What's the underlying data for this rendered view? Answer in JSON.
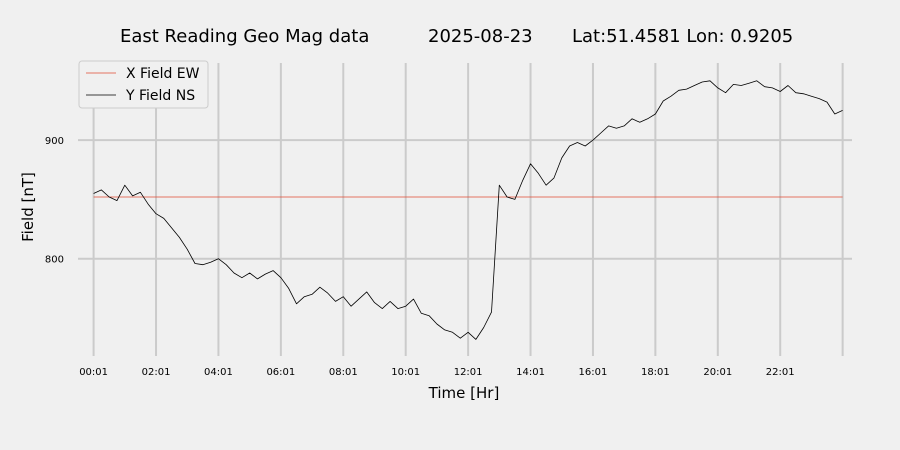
{
  "chart_data": {
    "type": "line",
    "title_parts": {
      "name": "East Reading Geo Mag data",
      "date": "2025-08-23",
      "location": "Lat:51.4581  Lon: 0.9205"
    },
    "xlabel": "Time  [Hr]",
    "ylabel": "Field  [nT]",
    "xlim": [
      -0.5,
      24.3
    ],
    "ylim": [
      718,
      965
    ],
    "x_ticks": [
      0,
      2,
      4,
      6,
      8,
      10,
      12,
      14,
      16,
      18,
      20,
      22,
      24
    ],
    "x_tick_labels": [
      "00:01",
      "02:01",
      "04:01",
      "06:01",
      "08:01",
      "10:01",
      "12:01",
      "14:01",
      "16:01",
      "18:01",
      "20:01",
      "22:01",
      ""
    ],
    "y_ticks": [
      800,
      900
    ],
    "y_tick_labels": [
      "800",
      "900"
    ],
    "grid": true,
    "legend_position": "top-left",
    "series": [
      {
        "name": "X Field EW",
        "color": "#e24a33",
        "x": [
          0,
          24
        ],
        "y": [
          852,
          852
        ]
      },
      {
        "name": "Y Field NS",
        "color": "#000000",
        "x": [
          0,
          0.25,
          0.5,
          0.75,
          1,
          1.25,
          1.5,
          1.75,
          2,
          2.25,
          2.5,
          2.75,
          3,
          3.25,
          3.5,
          3.75,
          4,
          4.25,
          4.5,
          4.75,
          5,
          5.25,
          5.5,
          5.75,
          6,
          6.25,
          6.5,
          6.75,
          7,
          7.25,
          7.5,
          7.75,
          8,
          8.25,
          8.5,
          8.75,
          9,
          9.25,
          9.5,
          9.75,
          10,
          10.25,
          10.5,
          10.75,
          11,
          11.25,
          11.5,
          11.75,
          12,
          12.25,
          12.5,
          12.75,
          13,
          13.25,
          13.5,
          13.75,
          14,
          14.25,
          14.5,
          14.75,
          15,
          15.25,
          15.5,
          15.75,
          16,
          16.25,
          16.5,
          16.75,
          17,
          17.25,
          17.5,
          17.75,
          18,
          18.25,
          18.5,
          18.75,
          19,
          19.25,
          19.5,
          19.75,
          20,
          20.25,
          20.5,
          20.75,
          21,
          21.25,
          21.5,
          21.75,
          22,
          22.25,
          22.5,
          22.75,
          23,
          23.25,
          23.5,
          23.75,
          24
        ],
        "y": [
          855,
          858,
          852,
          849,
          862,
          853,
          856,
          846,
          838,
          834,
          826,
          818,
          808,
          796,
          795,
          797,
          800,
          795,
          788,
          784,
          788,
          783,
          787,
          790,
          784,
          775,
          762,
          768,
          770,
          776,
          771,
          764,
          768,
          760,
          766,
          772,
          763,
          758,
          764,
          758,
          760,
          766,
          754,
          752,
          745,
          740,
          738,
          733,
          738,
          732,
          742,
          755,
          862,
          852,
          850,
          866,
          880,
          872,
          862,
          868,
          885,
          895,
          898,
          895,
          900,
          906,
          912,
          910,
          912,
          918,
          915,
          918,
          922,
          933,
          937,
          942,
          943,
          946,
          949,
          950,
          944,
          940,
          947,
          946,
          948,
          950,
          945,
          944,
          941,
          946,
          940,
          939,
          937,
          935,
          932,
          922,
          925
        ]
      }
    ]
  }
}
